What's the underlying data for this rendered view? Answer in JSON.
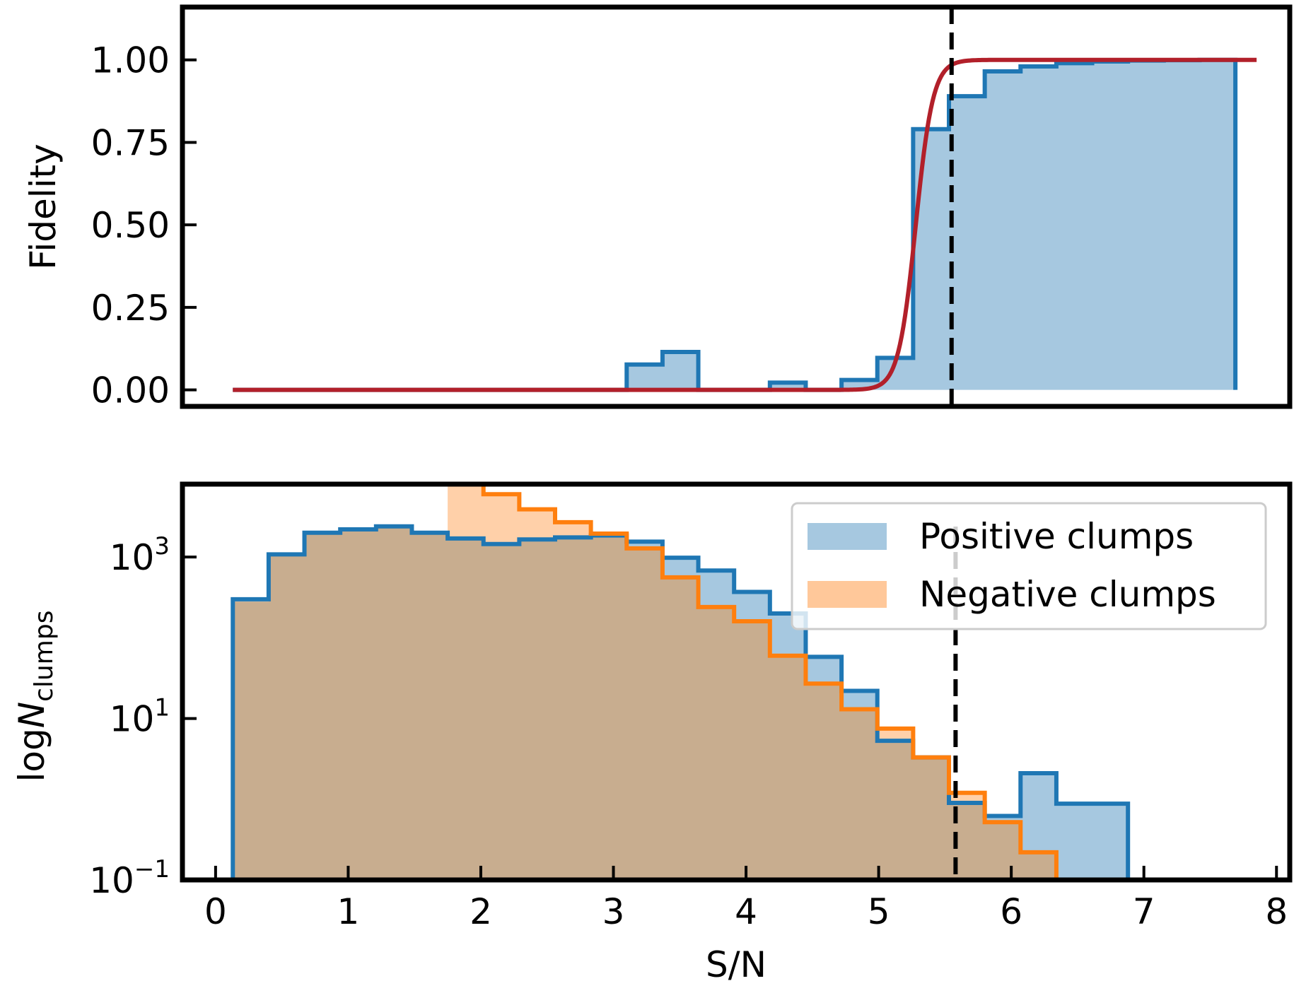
{
  "figure": {
    "colors": {
      "positive": "#1f77b4",
      "positive_fill": "#a6c8e0",
      "negative": "#ff7f0e",
      "negative_fill": "#ffc89a",
      "overlap_fill": "#c8ad8f",
      "fit": "#b2202a",
      "threshold": "#000000"
    }
  },
  "chart_data": [
    {
      "type": "area",
      "panel": "top",
      "xlabel": "",
      "ylabel": "Fidelity",
      "xlim": [
        -0.25,
        8.1
      ],
      "ylim": [
        -0.05,
        1.16
      ],
      "ytick_labels": [
        "0.00",
        "0.25",
        "0.50",
        "0.75",
        "1.00"
      ],
      "yticks": [
        0,
        0.25,
        0.5,
        0.75,
        1.0
      ],
      "grid": false,
      "threshold_x": 5.55,
      "series": [
        {
          "style": "step-filled",
          "color": "positive",
          "fill": "positive_fill",
          "bin_edges": [
            0.13,
            0.4,
            0.67,
            0.94,
            1.21,
            1.48,
            1.75,
            2.02,
            2.29,
            2.56,
            2.83,
            3.1,
            3.37,
            3.64,
            3.91,
            4.18,
            4.45,
            4.72,
            4.99,
            5.26,
            5.53,
            5.8,
            6.07,
            6.34,
            6.61,
            6.88,
            7.15,
            7.42,
            7.69
          ],
          "values": [
            0,
            0,
            0,
            0,
            0,
            0,
            0,
            0,
            0,
            0,
            0,
            0.077,
            0.115,
            0,
            0,
            0.022,
            0,
            0.03,
            0.097,
            0.79,
            0.89,
            0.965,
            0.98,
            0.99,
            0.995,
            0.998,
            0.999,
            1.0
          ]
        },
        {
          "style": "line",
          "color": "fit",
          "curve": "logistic",
          "x_range": [
            0.13,
            7.85
          ],
          "amplitude": 1.0,
          "midpoint": 5.28,
          "width": 0.065
        }
      ]
    },
    {
      "type": "area",
      "panel": "bottom",
      "xlabel": "S/N",
      "ylabel": "logN",
      "ylabel_subscript": "clumps",
      "xlim": [
        -0.25,
        8.1
      ],
      "yscale": "log",
      "ylim": [
        0.1,
        8000
      ],
      "xticks": [
        0,
        1,
        2,
        3,
        4,
        5,
        6,
        7,
        8
      ],
      "xtick_labels": [
        "0",
        "1",
        "2",
        "3",
        "4",
        "5",
        "6",
        "7",
        "8"
      ],
      "yticks": [
        0.1,
        10,
        1000
      ],
      "ytick_labels": [
        {
          "base": "10",
          "exponent": "−1"
        },
        {
          "base": "10",
          "exponent": "1"
        },
        {
          "base": "10",
          "exponent": "3"
        }
      ],
      "grid": false,
      "threshold_x": 5.58,
      "legend": {
        "position": "upper right",
        "entries": [
          {
            "label": "Positive clumps",
            "color": "positive_fill"
          },
          {
            "label": "Negative clumps",
            "color": "negative_fill"
          }
        ]
      },
      "series": [
        {
          "name": "Positive clumps",
          "style": "step-filled",
          "color": "positive",
          "fill": "positive_fill",
          "bin_edges": [
            0.13,
            0.4,
            0.67,
            0.94,
            1.21,
            1.48,
            1.75,
            2.02,
            2.29,
            2.56,
            2.83,
            3.1,
            3.37,
            3.64,
            3.91,
            4.18,
            4.45,
            4.72,
            4.99,
            5.26,
            5.53,
            5.8,
            6.07,
            6.34,
            6.61,
            6.88,
            7.15,
            7.42,
            7.69
          ],
          "values": [
            300,
            1080,
            2000,
            2200,
            2400,
            2000,
            1700,
            1450,
            1650,
            1750,
            1850,
            1550,
            980,
            680,
            370,
            200,
            58,
            22,
            5.3,
            3.3,
            0.9,
            0.62,
            2.1,
            0.88,
            0.88,
            0,
            0,
            0
          ]
        },
        {
          "name": "Negative clumps",
          "style": "step-filled",
          "color": "negative",
          "fill": "negative_fill",
          "bin_edges": [
            1.75,
            2.02,
            2.29,
            2.56,
            2.83,
            3.1,
            3.37,
            3.64,
            3.91,
            4.18,
            4.45,
            4.72,
            4.99,
            5.26,
            5.53,
            5.8,
            6.07,
            6.34,
            6.61
          ],
          "values": [
            8000,
            6000,
            3900,
            2700,
            1950,
            1280,
            560,
            240,
            160,
            60,
            27,
            13,
            7.5,
            3.3,
            1.2,
            0.52,
            0.22,
            0.1
          ],
          "fill_before_edge": [
            0.13,
            0.4,
            0.67,
            0.94,
            1.21,
            1.48
          ],
          "fill_before_values": [
            280,
            1050,
            1950,
            2150,
            2350,
            1950
          ]
        }
      ]
    }
  ]
}
